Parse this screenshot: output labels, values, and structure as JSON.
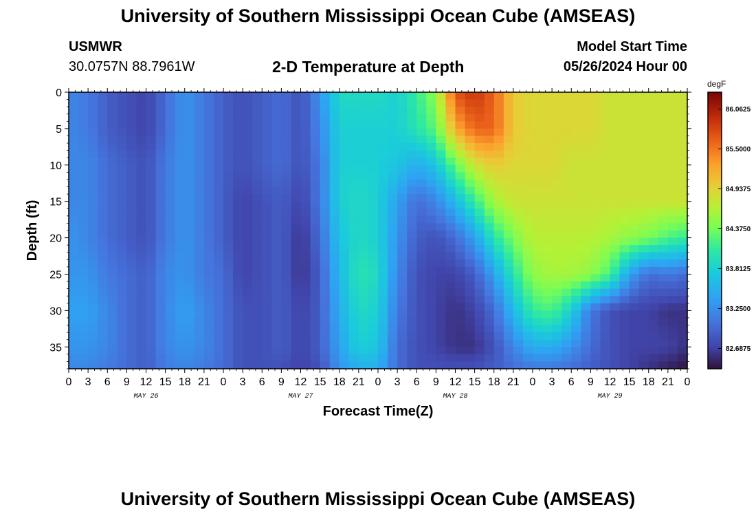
{
  "header": {
    "title": "University of Southern Mississippi Ocean Cube (AMSEAS)",
    "station_name": "USMWR",
    "station_coords": "30.0757N  88.7961W",
    "plot_title": "2-D Temperature at Depth",
    "model_start_label": "Model Start Time",
    "model_start_value": "05/26/2024 Hour 00"
  },
  "footer": {
    "title": "University of Southern Mississippi Ocean Cube (AMSEAS)"
  },
  "chart_data": {
    "type": "heatmap",
    "xlabel": "Forecast Time(Z)",
    "ylabel": "Depth (ft)",
    "colorbar_label": "degF",
    "xlim": [
      0,
      96
    ],
    "ylim": [
      0,
      38
    ],
    "y_inverted": true,
    "x_tick_labels": [
      "0",
      "3",
      "6",
      "9",
      "12",
      "15",
      "18",
      "21",
      "0",
      "3",
      "6",
      "9",
      "12",
      "15",
      "18",
      "21",
      "0",
      "3",
      "6",
      "9",
      "12",
      "15",
      "18",
      "21",
      "0",
      "3",
      "6",
      "9",
      "12",
      "15",
      "18",
      "21",
      "0"
    ],
    "y_ticks": [
      0,
      5,
      10,
      15,
      20,
      25,
      30,
      35
    ],
    "day_labels": [
      {
        "label": "MAY 26",
        "hour": 12
      },
      {
        "label": "MAY 27",
        "hour": 36
      },
      {
        "label": "MAY 28",
        "hour": 60
      },
      {
        "label": "MAY 29",
        "hour": 84
      }
    ],
    "colorbar_min": 82.4,
    "colorbar_max": 86.3,
    "colorbar_ticks": [
      "86.0625",
      "85.5000",
      "84.9375",
      "84.3750",
      "83.8125",
      "83.2500",
      "82.6875"
    ],
    "colorbar_tick_values": [
      86.0625,
      85.5,
      84.9375,
      84.375,
      83.8125,
      83.25,
      82.6875
    ],
    "depth_levels_ft": [
      0,
      5,
      10,
      15,
      20,
      25,
      30,
      35,
      38
    ],
    "hours": [
      0,
      3,
      6,
      9,
      12,
      15,
      18,
      21,
      24,
      27,
      30,
      33,
      36,
      39,
      42,
      45,
      48,
      51,
      54,
      57,
      60,
      63,
      66,
      69,
      72,
      75,
      78,
      81,
      84,
      87,
      90,
      93,
      96
    ],
    "temperature_degF": [
      [
        83.2,
        83.1,
        82.9,
        82.8,
        82.7,
        83.0,
        83.3,
        83.1,
        82.9,
        82.8,
        82.9,
        83.0,
        82.8,
        83.3,
        83.9,
        83.9,
        83.9,
        83.8,
        84.1,
        84.5,
        85.7,
        85.9,
        85.6,
        85.0,
        84.9,
        84.9,
        84.9,
        84.9,
        84.8,
        84.8,
        84.8,
        84.8,
        84.8
      ],
      [
        83.2,
        83.1,
        82.9,
        82.8,
        82.7,
        83.0,
        83.3,
        83.1,
        82.9,
        82.8,
        82.9,
        83.0,
        82.8,
        83.2,
        83.8,
        83.8,
        83.8,
        83.8,
        84.0,
        84.3,
        85.2,
        85.6,
        85.6,
        85.0,
        84.9,
        84.9,
        84.9,
        84.9,
        84.8,
        84.8,
        84.8,
        84.8,
        84.8
      ],
      [
        83.2,
        83.2,
        83.0,
        82.9,
        82.8,
        83.1,
        83.3,
        83.1,
        82.9,
        82.8,
        82.9,
        83.0,
        82.8,
        83.1,
        83.8,
        83.8,
        83.8,
        83.7,
        83.5,
        83.7,
        84.3,
        84.8,
        85.0,
        84.9,
        84.9,
        84.9,
        84.8,
        84.8,
        84.8,
        84.8,
        84.8,
        84.8,
        84.8
      ],
      [
        83.2,
        83.2,
        83.0,
        82.9,
        82.8,
        83.1,
        83.3,
        83.1,
        82.9,
        82.7,
        82.8,
        82.9,
        82.7,
        83.1,
        83.8,
        83.9,
        83.8,
        83.4,
        83.0,
        83.2,
        83.6,
        84.1,
        84.6,
        84.8,
        84.8,
        84.8,
        84.8,
        84.8,
        84.8,
        84.8,
        84.8,
        84.8,
        84.8
      ],
      [
        83.3,
        83.2,
        83.0,
        82.9,
        82.8,
        83.1,
        83.3,
        83.1,
        82.9,
        82.7,
        82.8,
        82.9,
        82.6,
        83.0,
        83.7,
        83.9,
        83.8,
        83.3,
        82.9,
        82.8,
        83.0,
        83.4,
        84.0,
        84.4,
        84.7,
        84.7,
        84.7,
        84.7,
        84.6,
        84.5,
        84.4,
        84.2,
        84.1
      ],
      [
        83.3,
        83.3,
        83.1,
        83.0,
        82.9,
        83.2,
        83.3,
        83.1,
        83.0,
        82.7,
        82.8,
        82.9,
        82.6,
        82.9,
        83.6,
        84.0,
        83.9,
        83.2,
        82.8,
        82.7,
        82.7,
        82.9,
        83.4,
        84.0,
        84.5,
        84.6,
        84.6,
        84.5,
        84.2,
        83.4,
        83.0,
        83.1,
        83.0
      ],
      [
        83.4,
        83.4,
        83.2,
        83.0,
        82.9,
        83.2,
        83.4,
        83.2,
        83.0,
        82.8,
        82.8,
        82.9,
        82.7,
        82.9,
        83.5,
        83.9,
        83.8,
        83.1,
        82.8,
        82.7,
        82.6,
        82.7,
        83.0,
        83.6,
        84.1,
        84.2,
        83.8,
        83.1,
        82.8,
        82.7,
        82.7,
        82.6,
        82.6
      ],
      [
        83.3,
        83.3,
        83.2,
        83.0,
        82.9,
        83.2,
        83.3,
        83.2,
        83.0,
        82.8,
        82.8,
        82.9,
        82.7,
        82.9,
        83.4,
        83.8,
        83.7,
        83.0,
        82.8,
        82.7,
        82.6,
        82.6,
        82.8,
        83.2,
        83.5,
        83.5,
        83.3,
        83.0,
        82.8,
        82.7,
        82.7,
        82.7,
        82.6
      ],
      [
        83.2,
        83.2,
        83.1,
        83.0,
        82.9,
        83.1,
        83.2,
        83.1,
        83.0,
        82.8,
        82.8,
        82.8,
        82.7,
        82.8,
        83.3,
        83.5,
        83.5,
        83.0,
        82.8,
        82.8,
        82.8,
        82.8,
        82.9,
        83.0,
        83.1,
        83.1,
        83.0,
        82.9,
        82.8,
        82.7,
        82.6,
        82.5,
        82.4
      ]
    ]
  }
}
